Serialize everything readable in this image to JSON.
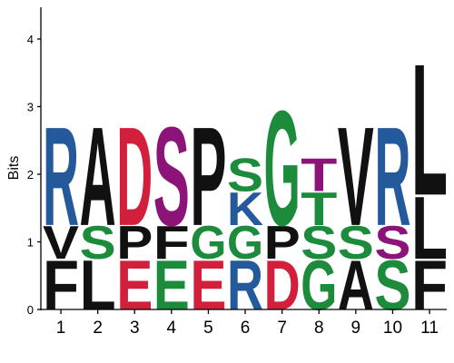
{
  "chart_data": {
    "type": "sequence-logo",
    "ylabel": "Bits",
    "ylim": [
      0,
      4.5
    ],
    "yticks": [
      "0",
      "1",
      "2",
      "3",
      "4"
    ],
    "colors": {
      "black": "#111111",
      "red": "#d21f3c",
      "green": "#1c8c3c",
      "blue": "#245a9c",
      "purple": "#8c1478"
    },
    "positions": [
      {
        "label": "1",
        "stack": [
          {
            "letter": "F",
            "height": 0.75,
            "color": "black"
          },
          {
            "letter": "V",
            "height": 0.5,
            "color": "black"
          },
          {
            "letter": "R",
            "height": 1.5,
            "color": "blue"
          }
        ]
      },
      {
        "label": "2",
        "stack": [
          {
            "letter": "L",
            "height": 0.75,
            "color": "black"
          },
          {
            "letter": "S",
            "height": 0.5,
            "color": "green"
          },
          {
            "letter": "A",
            "height": 1.5,
            "color": "black"
          }
        ]
      },
      {
        "label": "3",
        "stack": [
          {
            "letter": "E",
            "height": 0.75,
            "color": "red"
          },
          {
            "letter": "P",
            "height": 0.5,
            "color": "black"
          },
          {
            "letter": "D",
            "height": 1.5,
            "color": "red"
          }
        ]
      },
      {
        "label": "4",
        "stack": [
          {
            "letter": "E",
            "height": 0.75,
            "color": "green"
          },
          {
            "letter": "F",
            "height": 0.5,
            "color": "black"
          },
          {
            "letter": "S",
            "height": 1.5,
            "color": "purple"
          }
        ]
      },
      {
        "label": "5",
        "stack": [
          {
            "letter": "E",
            "height": 0.75,
            "color": "red"
          },
          {
            "letter": "G",
            "height": 0.5,
            "color": "green"
          },
          {
            "letter": "P",
            "height": 1.5,
            "color": "black"
          }
        ]
      },
      {
        "label": "6",
        "stack": [
          {
            "letter": "R",
            "height": 0.75,
            "color": "blue"
          },
          {
            "letter": "G",
            "height": 0.5,
            "color": "green"
          },
          {
            "letter": "K",
            "height": 0.5,
            "color": "blue"
          },
          {
            "letter": "S",
            "height": 0.5,
            "color": "green"
          }
        ]
      },
      {
        "label": "7",
        "stack": [
          {
            "letter": "D",
            "height": 0.75,
            "color": "red"
          },
          {
            "letter": "P",
            "height": 0.5,
            "color": "black"
          },
          {
            "letter": "G",
            "height": 1.75,
            "color": "green"
          }
        ]
      },
      {
        "label": "8",
        "stack": [
          {
            "letter": "G",
            "height": 0.75,
            "color": "green"
          },
          {
            "letter": "S",
            "height": 0.5,
            "color": "green"
          },
          {
            "letter": "T",
            "height": 0.5,
            "color": "green"
          },
          {
            "letter": "T",
            "height": 0.5,
            "color": "purple"
          }
        ]
      },
      {
        "label": "9",
        "stack": [
          {
            "letter": "A",
            "height": 0.75,
            "color": "black"
          },
          {
            "letter": "S",
            "height": 0.5,
            "color": "green"
          },
          {
            "letter": "V",
            "height": 1.5,
            "color": "black"
          }
        ]
      },
      {
        "label": "10",
        "stack": [
          {
            "letter": "S",
            "height": 0.75,
            "color": "green"
          },
          {
            "letter": "S",
            "height": 0.5,
            "color": "purple"
          },
          {
            "letter": "R",
            "height": 1.5,
            "color": "blue"
          }
        ]
      },
      {
        "label": "11",
        "stack": [
          {
            "letter": "F",
            "height": 0.75,
            "color": "black"
          },
          {
            "letter": "L",
            "height": 0.95,
            "color": "black"
          },
          {
            "letter": "L",
            "height": 2.0,
            "color": "black"
          }
        ]
      }
    ]
  }
}
